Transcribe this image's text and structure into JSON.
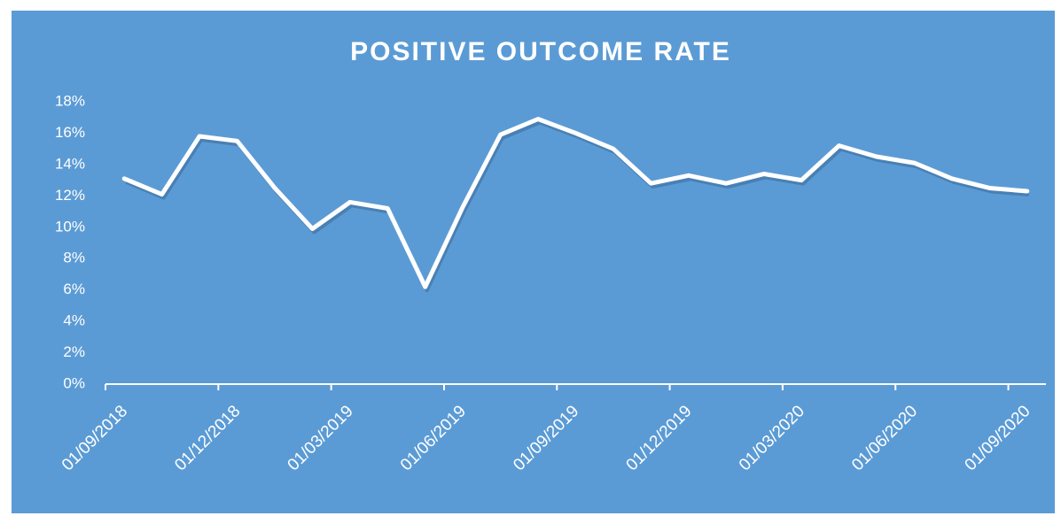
{
  "chart_data": {
    "type": "line",
    "title": "POSITIVE OUTCOME RATE",
    "x": [
      0.5,
      1.5,
      2.5,
      3.5,
      4.5,
      5.5,
      6.5,
      7.5,
      8.5,
      9.5,
      10.5,
      11.5,
      12.5,
      13.5,
      14.5,
      15.5,
      16.5,
      17.5,
      18.5,
      19.5,
      20.5,
      21.5,
      22.5,
      23.5,
      24.5
    ],
    "series": [
      {
        "name": "Positive outcome rate",
        "color": "#ffffff",
        "values": [
          13.1,
          12.1,
          15.8,
          15.5,
          12.5,
          9.9,
          11.6,
          11.2,
          6.2,
          11.3,
          15.9,
          16.9,
          16.0,
          15.0,
          12.8,
          13.3,
          12.8,
          13.4,
          13.0,
          15.2,
          14.5,
          14.1,
          13.1,
          12.5,
          12.3
        ]
      }
    ],
    "xlim": [
      0,
      25
    ],
    "xticks": [
      {
        "value": 0,
        "label": "01/09/2018"
      },
      {
        "value": 3,
        "label": "01/12/2018"
      },
      {
        "value": 6,
        "label": "01/03/2019"
      },
      {
        "value": 9,
        "label": "01/06/2019"
      },
      {
        "value": 12,
        "label": "01/09/2019"
      },
      {
        "value": 15,
        "label": "01/12/2019"
      },
      {
        "value": 18,
        "label": "01/03/2020"
      },
      {
        "value": 21,
        "label": "01/06/2020"
      },
      {
        "value": 24,
        "label": "01/09/2020"
      }
    ],
    "ylim": [
      0,
      18
    ],
    "yticks": [
      {
        "value": 0,
        "label": "0%"
      },
      {
        "value": 2,
        "label": "2%"
      },
      {
        "value": 4,
        "label": "4%"
      },
      {
        "value": 6,
        "label": "6%"
      },
      {
        "value": 8,
        "label": "8%"
      },
      {
        "value": 10,
        "label": "10%"
      },
      {
        "value": 12,
        "label": "12%"
      },
      {
        "value": 14,
        "label": "14%"
      },
      {
        "value": 16,
        "label": "16%"
      },
      {
        "value": 18,
        "label": "18%"
      }
    ],
    "drop_lines": true,
    "background": "#5b9bd5"
  }
}
